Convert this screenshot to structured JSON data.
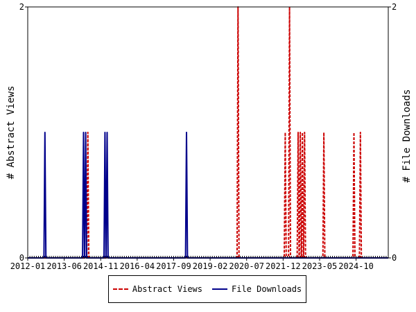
{
  "chart_data": {
    "type": "line",
    "left_axis_label": "# Abstract Views",
    "right_axis_label": "# File Downloads",
    "xlim": [
      "2012-01",
      "2026-01"
    ],
    "ylim": [
      0,
      2
    ],
    "y_ticks": [
      "0",
      "2"
    ],
    "x_ticks": [
      "2012-01",
      "2013-06",
      "2014-11",
      "2016-04",
      "2017-09",
      "2019-02",
      "2020-07",
      "2021-12",
      "2023-05",
      "2024-10"
    ],
    "grid": false,
    "legend_position": "bottom",
    "series": [
      {
        "name": "Abstract Views",
        "color": "#cc0000",
        "style": "dashed",
        "axis": "left",
        "x": [
          "2014-05",
          "2020-03",
          "2022-01",
          "2022-03",
          "2022-07",
          "2022-08",
          "2022-09",
          "2022-10",
          "2023-07",
          "2024-09",
          "2024-12"
        ],
        "y": [
          1,
          2,
          1,
          2,
          1,
          1,
          1,
          1,
          1,
          1,
          1
        ]
      },
      {
        "name": "File Downloads",
        "color": "#00008b",
        "style": "solid",
        "axis": "right",
        "x": [
          "2012-09",
          "2014-03",
          "2014-04",
          "2015-01",
          "2015-02",
          "2018-03"
        ],
        "y": [
          1,
          1,
          1,
          1,
          1,
          1
        ]
      }
    ]
  }
}
